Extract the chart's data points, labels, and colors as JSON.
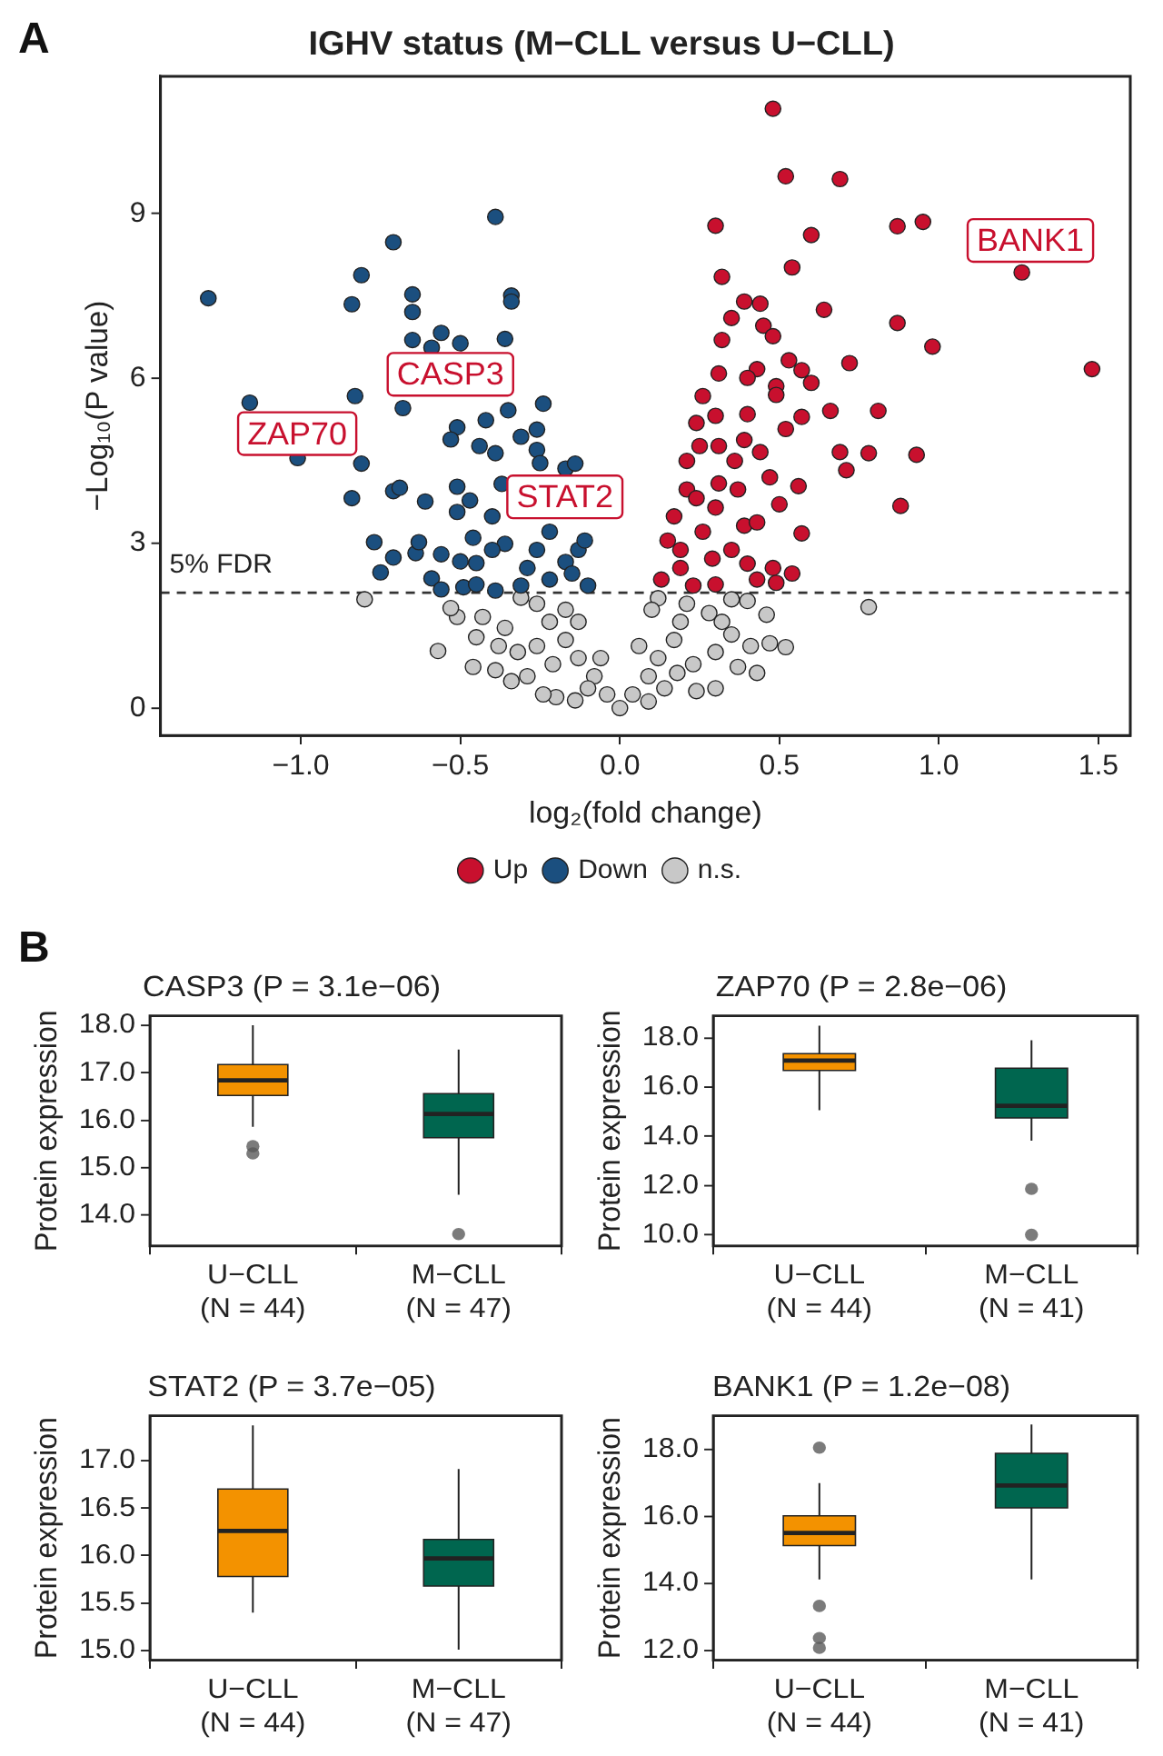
{
  "chart_data": [
    {
      "type": "scatter",
      "title": "IGHV status (M−CLL versus U−CLL)",
      "xlabel": "log₂(fold change)",
      "ylabel": "−Log₁₀(P value)",
      "xlim": [
        -1.44,
        1.6
      ],
      "ylim": [
        -0.5,
        11.5
      ],
      "xticks": [
        {
          "value": -1,
          "label": "−1.0"
        },
        {
          "value": -0.5,
          "label": "−0.5"
        },
        {
          "value": 0,
          "label": "0.0"
        },
        {
          "value": 0.5,
          "label": "0.5"
        },
        {
          "value": 1,
          "label": "1.0"
        },
        {
          "value": 1.5,
          "label": "1.5"
        }
      ],
      "yticks": [
        0,
        3,
        6,
        9
      ],
      "grid": false,
      "legend": "bottom",
      "marker": "circle",
      "annotations": [
        "A",
        "BANK1",
        "CASP3",
        "ZAP70",
        "STAT2"
      ],
      "ref_lines": [
        {
          "axis": "y",
          "value": 2.1,
          "label": "5% FDR",
          "line_style": "dashed",
          "color": "#333333"
        }
      ],
      "series": [
        {
          "name": "Up",
          "color": "#c8102e",
          "x": [
            0.48,
            0.52,
            0.69,
            0.3,
            0.87,
            0.95,
            0.6,
            0.54,
            1.26,
            0.32,
            0.39,
            0.44,
            0.64,
            0.35,
            0.87,
            0.45,
            0.48,
            0.32,
            0.98,
            1.48,
            0.72,
            0.53,
            0.57,
            0.43,
            0.4,
            0.31,
            0.49,
            0.6,
            0.49,
            0.26,
            0.66,
            0.81,
            0.57,
            0.4,
            0.3,
            0.52,
            0.24,
            0.69,
            0.78,
            0.93,
            0.71,
            0.25,
            0.31,
            0.39,
            0.44,
            0.36,
            0.21,
            0.47,
            0.56,
            0.88,
            0.5,
            0.57,
            0.17,
            0.21,
            0.3,
            0.39,
            0.43,
            0.37,
            0.15,
            0.19,
            0.26,
            0.35,
            0.4,
            0.48,
            0.54,
            0.49,
            0.43,
            0.3,
            0.23,
            0.13,
            0.19,
            0.29,
            0.24,
            0.31
          ],
          "values": [
            10.91,
            9.68,
            9.63,
            8.78,
            8.77,
            8.85,
            8.61,
            8.02,
            7.93,
            7.85,
            7.4,
            7.36,
            7.25,
            7.1,
            7.01,
            6.96,
            6.77,
            6.7,
            6.58,
            6.17,
            6.28,
            6.33,
            6.15,
            6.17,
            6.01,
            6.09,
            5.86,
            5.92,
            5.7,
            5.68,
            5.41,
            5.41,
            5.3,
            5.35,
            5.32,
            5.08,
            5.19,
            4.66,
            4.64,
            4.61,
            4.33,
            4.77,
            4.77,
            4.88,
            4.66,
            4.5,
            4.5,
            4.2,
            4.04,
            3.68,
            3.71,
            3.18,
            3.49,
            3.98,
            3.65,
            3.32,
            3.38,
            3.98,
            3.05,
            2.88,
            3.21,
            2.88,
            2.63,
            2.55,
            2.45,
            2.28,
            2.34,
            2.25,
            2.23,
            2.34,
            2.55,
            2.72,
            3.82,
            4.09
          ]
        },
        {
          "name": "Down",
          "color": "#1b4f7f",
          "x": [
            -1.29,
            -1.16,
            -1.01,
            -0.84,
            -0.81,
            -0.71,
            -0.65,
            -0.65,
            -0.65,
            -0.56,
            -0.5,
            -0.59,
            -0.39,
            -0.34,
            -0.34,
            -0.36,
            -0.83,
            -0.68,
            -0.81,
            -0.84,
            -0.71,
            -0.69,
            -0.61,
            -0.77,
            -0.71,
            -0.75,
            -0.64,
            -0.63,
            -0.59,
            -0.56,
            -0.56,
            -0.51,
            -0.53,
            -0.51,
            -0.51,
            -0.47,
            -0.5,
            -0.49,
            -0.45,
            -0.45,
            -0.44,
            -0.42,
            -0.39,
            -0.35,
            -0.24,
            -0.26,
            -0.31,
            -0.26,
            -0.25,
            -0.17,
            -0.14,
            -0.39,
            -0.36,
            -0.31,
            -0.26,
            -0.22,
            -0.17,
            -0.13,
            -0.11,
            -0.1,
            -0.15,
            -0.22,
            -0.29,
            -0.4,
            -0.46,
            -0.4,
            -0.37
          ],
          "values": [
            7.46,
            5.56,
            4.55,
            7.35,
            7.88,
            8.48,
            7.53,
            7.21,
            6.7,
            6.83,
            6.64,
            6.56,
            8.94,
            7.51,
            7.4,
            6.72,
            5.68,
            5.46,
            4.45,
            3.82,
            3.95,
            4.01,
            3.76,
            3.02,
            2.74,
            2.47,
            2.82,
            3.02,
            2.36,
            2.8,
            2.16,
            5.11,
            4.89,
            4.03,
            3.57,
            3.78,
            2.67,
            2.2,
            2.25,
            2.64,
            4.77,
            5.24,
            4.64,
            5.42,
            5.54,
            5.07,
            4.94,
            4.7,
            4.46,
            4.36,
            4.45,
            2.14,
            2.99,
            2.23,
            2.88,
            3.21,
            2.66,
            2.88,
            3.05,
            2.23,
            2.45,
            2.34,
            2.55,
            2.88,
            3.1,
            3.49,
            4.08
          ]
        },
        {
          "name": "n.s.",
          "color": "#c8c8c8",
          "x": [
            0,
            -0.04,
            0.04,
            -0.08,
            0.09,
            -0.13,
            0.12,
            -0.17,
            0.17,
            -0.22,
            0.19,
            -0.26,
            0.21,
            -0.31,
            0.12,
            -0.8,
            0.78,
            -0.57,
            -0.51,
            -0.53,
            -0.43,
            -0.46,
            -0.45,
            -0.39,
            -0.34,
            -0.38,
            -0.32,
            -0.36,
            -0.29,
            -0.2,
            -0.14,
            -0.24,
            -0.26,
            -0.21,
            -0.17,
            -0.13,
            -0.06,
            -0.1,
            0.09,
            0.14,
            0.18,
            0.24,
            0.3,
            0.23,
            0.3,
            0.37,
            0.43,
            0.35,
            0.41,
            0.46,
            0.47,
            0.52,
            0.4,
            0.35,
            0.28,
            0.1,
            0.06,
            0.32
          ],
          "values": [
            0,
            0.25,
            0.25,
            0.58,
            0.58,
            0.91,
            0.91,
            1.24,
            1.24,
            1.57,
            1.57,
            1.9,
            1.9,
            2.01,
            2.0,
            1.98,
            1.84,
            1.04,
            1.66,
            1.82,
            1.66,
            0.75,
            1.29,
            0.69,
            0.49,
            1.13,
            1.02,
            1.46,
            0.58,
            0.2,
            0.14,
            0.25,
            1.13,
            0.8,
            1.79,
            1.57,
            0.91,
            0.36,
            0.12,
            0.36,
            0.64,
            0.31,
            0.36,
            0.8,
            1.02,
            0.75,
            0.64,
            1.34,
            1.13,
            1.7,
            1.18,
            1.11,
            1.95,
            1.98,
            1.73,
            1.79,
            1.13,
            1.57
          ]
        }
      ]
    },
    {
      "type": "box",
      "title": "CASP3 (P = 3.1e−06)",
      "ylabel": "Protein expression",
      "categories": [
        "U−CLL\n(N = 44)",
        "M−CLL\n(N = 47)"
      ],
      "colors": [
        "#f39200",
        "#00664f"
      ],
      "ylim": [
        13.35,
        18.2
      ],
      "yticks": [
        {
          "value": 14,
          "label": "14.0"
        },
        {
          "value": 15,
          "label": "15.0"
        },
        {
          "value": 16,
          "label": "16.0"
        },
        {
          "value": 17,
          "label": "17.0"
        },
        {
          "value": 18,
          "label": "18.0"
        }
      ],
      "annotations": [
        "B"
      ],
      "boxes": [
        {
          "low": 15.86,
          "q1": 16.52,
          "median": 16.84,
          "q3": 17.17,
          "high": 18.0,
          "outliers": [
            15.45,
            15.3
          ]
        },
        {
          "low": 14.43,
          "q1": 15.63,
          "median": 16.13,
          "q3": 16.56,
          "high": 17.49,
          "outliers": [
            13.6
          ]
        }
      ]
    },
    {
      "type": "box",
      "title": "ZAP70 (P = 2.8e−06)",
      "ylabel": "Protein expression",
      "categories": [
        "U−CLL\n(N = 44)",
        "M−CLL\n(N = 41)"
      ],
      "colors": [
        "#f39200",
        "#00664f"
      ],
      "ylim": [
        9.55,
        18.9
      ],
      "yticks": [
        {
          "value": 10,
          "label": "10.0"
        },
        {
          "value": 12,
          "label": "12.0"
        },
        {
          "value": 14,
          "label": "14.0"
        },
        {
          "value": 16,
          "label": "16.0"
        },
        {
          "value": 18,
          "label": "18.0"
        }
      ],
      "boxes": [
        {
          "low": 15.06,
          "q1": 16.68,
          "median": 17.08,
          "q3": 17.36,
          "high": 18.5
        },
        {
          "low": 13.83,
          "q1": 14.75,
          "median": 15.24,
          "q3": 16.77,
          "high": 17.91,
          "outliers": [
            11.87,
            10.0
          ]
        }
      ]
    },
    {
      "type": "box",
      "title": "STAT2 (P = 3.7e−05)",
      "ylabel": "Protein expression",
      "categories": [
        "U−CLL\n(N = 44)",
        "M−CLL\n(N = 47)"
      ],
      "colors": [
        "#f39200",
        "#00664f"
      ],
      "ylim": [
        14.9,
        17.47
      ],
      "yticks": [
        {
          "value": 15,
          "label": "15.0"
        },
        {
          "value": 15.5,
          "label": "15.5"
        },
        {
          "value": 16,
          "label": "16.0"
        },
        {
          "value": 16.5,
          "label": "16.5"
        },
        {
          "value": 17,
          "label": "17.0"
        }
      ],
      "boxes": [
        {
          "low": 15.4,
          "q1": 15.78,
          "median": 16.26,
          "q3": 16.7,
          "high": 17.37
        },
        {
          "low": 15.01,
          "q1": 15.68,
          "median": 15.97,
          "q3": 16.17,
          "high": 16.91
        }
      ]
    },
    {
      "type": "box",
      "title": "BANK1 (P = 1.2e−08)",
      "ylabel": "Protein expression",
      "categories": [
        "U−CLL\n(N = 44)",
        "M−CLL\n(N = 41)"
      ],
      "colors": [
        "#f39200",
        "#00664f"
      ],
      "ylim": [
        11.7,
        19.0
      ],
      "yticks": [
        {
          "value": 12,
          "label": "12.0"
        },
        {
          "value": 14,
          "label": "14.0"
        },
        {
          "value": 16,
          "label": "16.0"
        },
        {
          "value": 18,
          "label": "18.0"
        }
      ],
      "boxes": [
        {
          "low": 14.11,
          "q1": 15.12,
          "median": 15.5,
          "q3": 16.01,
          "high": 16.99,
          "outliers": [
            18.05,
            13.32,
            12.36,
            12.07
          ]
        },
        {
          "low": 14.11,
          "q1": 16.25,
          "median": 16.92,
          "q3": 17.88,
          "high": 18.74
        }
      ]
    }
  ]
}
